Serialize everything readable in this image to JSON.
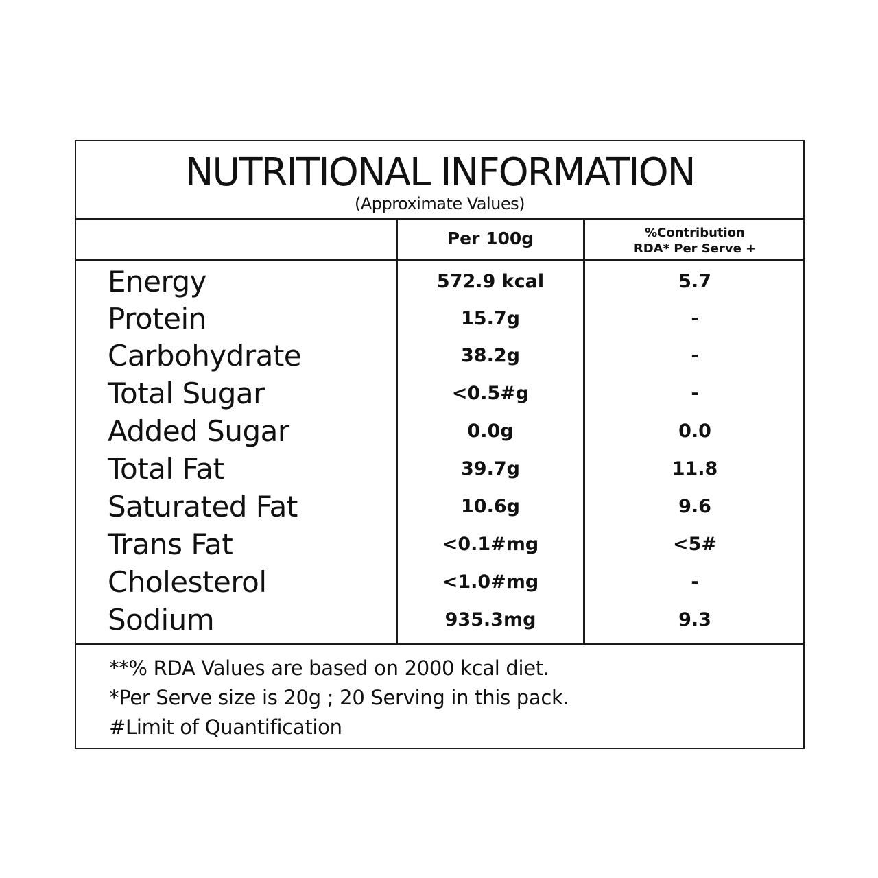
{
  "title": "NUTRITIONAL INFORMATION",
  "subtitle": "(Approximate Values)",
  "columns": {
    "nutrient": "",
    "per_100g": "Per 100g",
    "rda_line1": "%Contribution",
    "rda_line2": "RDA* Per Serve +"
  },
  "rows": [
    {
      "nutrient": "Energy",
      "per_100g": "572.9 kcal",
      "rda": "5.7"
    },
    {
      "nutrient": "Protein",
      "per_100g": "15.7g",
      "rda": "-"
    },
    {
      "nutrient": "Carbohydrate",
      "per_100g": "38.2g",
      "rda": "-"
    },
    {
      "nutrient": "Total Sugar",
      "per_100g": "<0.5#g",
      "rda": "-"
    },
    {
      "nutrient": "Added Sugar",
      "per_100g": "0.0g",
      "rda": "0.0"
    },
    {
      "nutrient": "Total Fat",
      "per_100g": "39.7g",
      "rda": "11.8"
    },
    {
      "nutrient": "Saturated Fat",
      "per_100g": "10.6g",
      "rda": "9.6"
    },
    {
      "nutrient": "Trans Fat",
      "per_100g": "<0.1#mg",
      "rda": "<5#"
    },
    {
      "nutrient": "Cholesterol",
      "per_100g": "<1.0#mg",
      "rda": "-"
    },
    {
      "nutrient": "Sodium",
      "per_100g": "935.3mg",
      "rda": "9.3"
    }
  ],
  "notes": [
    "**% RDA Values are based on 2000 kcal diet.",
    "*Per Serve size is 20g ; 20 Serving in this pack.",
    "#Limit of Quantification"
  ]
}
